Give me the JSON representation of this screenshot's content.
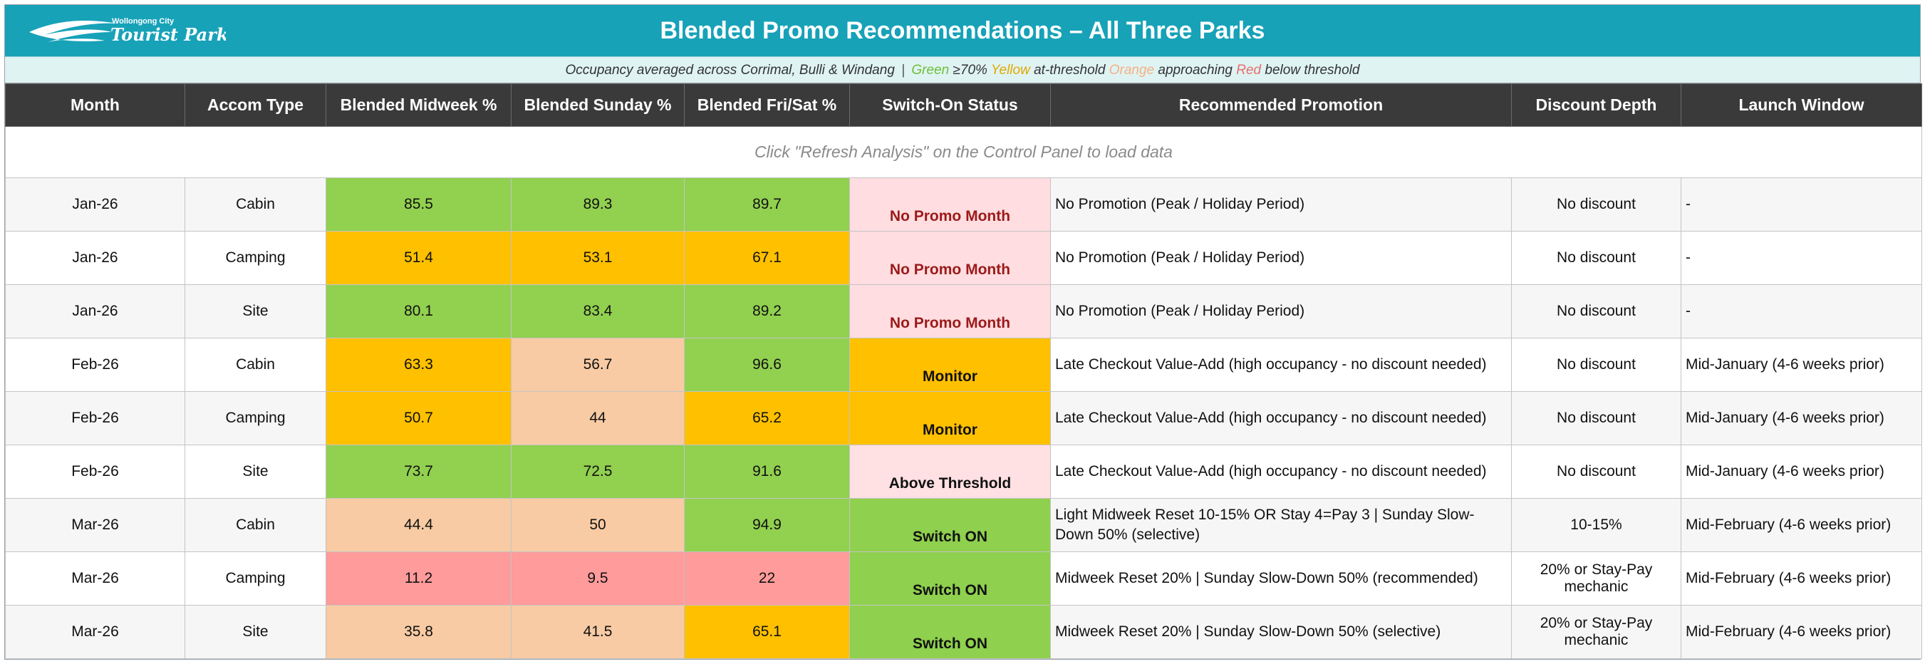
{
  "header": {
    "logo_top": "Wollongong City",
    "logo_main": "Tourist Parks",
    "title": "Blended Promo Recommendations – All Three Parks"
  },
  "legend": {
    "intro": "Occupancy averaged across Corrimal, Bulli & Windang",
    "separator": "|",
    "green_word": "Green",
    "green_desc": "≥70%",
    "yellow_word": "Yellow",
    "yellow_desc": "at-threshold",
    "orange_word": "Orange",
    "orange_desc": "approaching",
    "red_word": "Red",
    "red_desc": "below threshold",
    "colors": {
      "green": "#92d050",
      "yellow": "#ffc000",
      "orange": "#f8cba4",
      "red": "#ff9b9b"
    }
  },
  "columns": [
    "Month",
    "Accom Type",
    "Blended Midweek %",
    "Blended Sunday %",
    "Blended Fri/Sat %",
    "Switch-On Status",
    "Recommended Promotion",
    "Discount Depth",
    "Launch Window"
  ],
  "notice": "Click \"Refresh Analysis\" on the Control Panel to load data",
  "rows": [
    {
      "month": "Jan-26",
      "type": "Cabin",
      "midweek": "85.5",
      "midweek_band": "g",
      "sunday": "89.3",
      "sunday_band": "g",
      "frisat": "89.7",
      "frisat_band": "g",
      "status": "No Promo Month",
      "status_kind": "nopromo",
      "promotion": "No Promotion (Peak / Holiday Period)",
      "discount": "No discount",
      "launch": "-"
    },
    {
      "month": "Jan-26",
      "type": "Camping",
      "midweek": "51.4",
      "midweek_band": "y",
      "sunday": "53.1",
      "sunday_band": "y",
      "frisat": "67.1",
      "frisat_band": "y",
      "status": "No Promo Month",
      "status_kind": "nopromo",
      "promotion": "No Promotion (Peak / Holiday Period)",
      "discount": "No discount",
      "launch": "-"
    },
    {
      "month": "Jan-26",
      "type": "Site",
      "midweek": "80.1",
      "midweek_band": "g",
      "sunday": "83.4",
      "sunday_band": "g",
      "frisat": "89.2",
      "frisat_band": "g",
      "status": "No Promo Month",
      "status_kind": "nopromo",
      "promotion": "No Promotion (Peak / Holiday Period)",
      "discount": "No discount",
      "launch": "-"
    },
    {
      "month": "Feb-26",
      "type": "Cabin",
      "midweek": "63.3",
      "midweek_band": "y",
      "sunday": "56.7",
      "sunday_band": "o",
      "frisat": "96.6",
      "frisat_band": "g",
      "status": "Monitor",
      "status_kind": "monitor",
      "promotion": "Late Checkout Value-Add (high occupancy - no discount needed)",
      "discount": "No discount",
      "launch": "Mid-January (4-6 weeks prior)"
    },
    {
      "month": "Feb-26",
      "type": "Camping",
      "midweek": "50.7",
      "midweek_band": "y",
      "sunday": "44",
      "sunday_band": "o",
      "frisat": "65.2",
      "frisat_band": "y",
      "status": "Monitor",
      "status_kind": "monitor",
      "promotion": "Late Checkout Value-Add (high occupancy - no discount needed)",
      "discount": "No discount",
      "launch": "Mid-January (4-6 weeks prior)"
    },
    {
      "month": "Feb-26",
      "type": "Site",
      "midweek": "73.7",
      "midweek_band": "g",
      "sunday": "72.5",
      "sunday_band": "g",
      "frisat": "91.6",
      "frisat_band": "g",
      "status": "Above Threshold",
      "status_kind": "above",
      "promotion": "Late Checkout Value-Add (high occupancy - no discount needed)",
      "discount": "No discount",
      "launch": "Mid-January (4-6 weeks prior)"
    },
    {
      "month": "Mar-26",
      "type": "Cabin",
      "midweek": "44.4",
      "midweek_band": "o",
      "sunday": "50",
      "sunday_band": "o",
      "frisat": "94.9",
      "frisat_band": "g",
      "status": "Switch ON",
      "status_kind": "on",
      "promotion": "Light Midweek Reset 10-15% OR Stay 4=Pay 3  |  Sunday Slow-Down 50% (selective)",
      "discount": "10-15%",
      "launch": "Mid-February (4-6 weeks prior)"
    },
    {
      "month": "Mar-26",
      "type": "Camping",
      "midweek": "11.2",
      "midweek_band": "r",
      "sunday": "9.5",
      "sunday_band": "r",
      "frisat": "22",
      "frisat_band": "r",
      "status": "Switch ON",
      "status_kind": "on",
      "promotion": "Midweek Reset 20%  |  Sunday Slow-Down 50% (recommended)",
      "discount": "20% or Stay-Pay mechanic",
      "launch": "Mid-February (4-6 weeks prior)"
    },
    {
      "month": "Mar-26",
      "type": "Site",
      "midweek": "35.8",
      "midweek_band": "o",
      "sunday": "41.5",
      "sunday_band": "o",
      "frisat": "65.1",
      "frisat_band": "y",
      "status": "Switch ON",
      "status_kind": "on",
      "promotion": "Midweek Reset 20%  |  Sunday Slow-Down 50% (selective)",
      "discount": "20% or Stay-Pay mechanic",
      "launch": "Mid-February (4-6 weeks prior)"
    }
  ]
}
